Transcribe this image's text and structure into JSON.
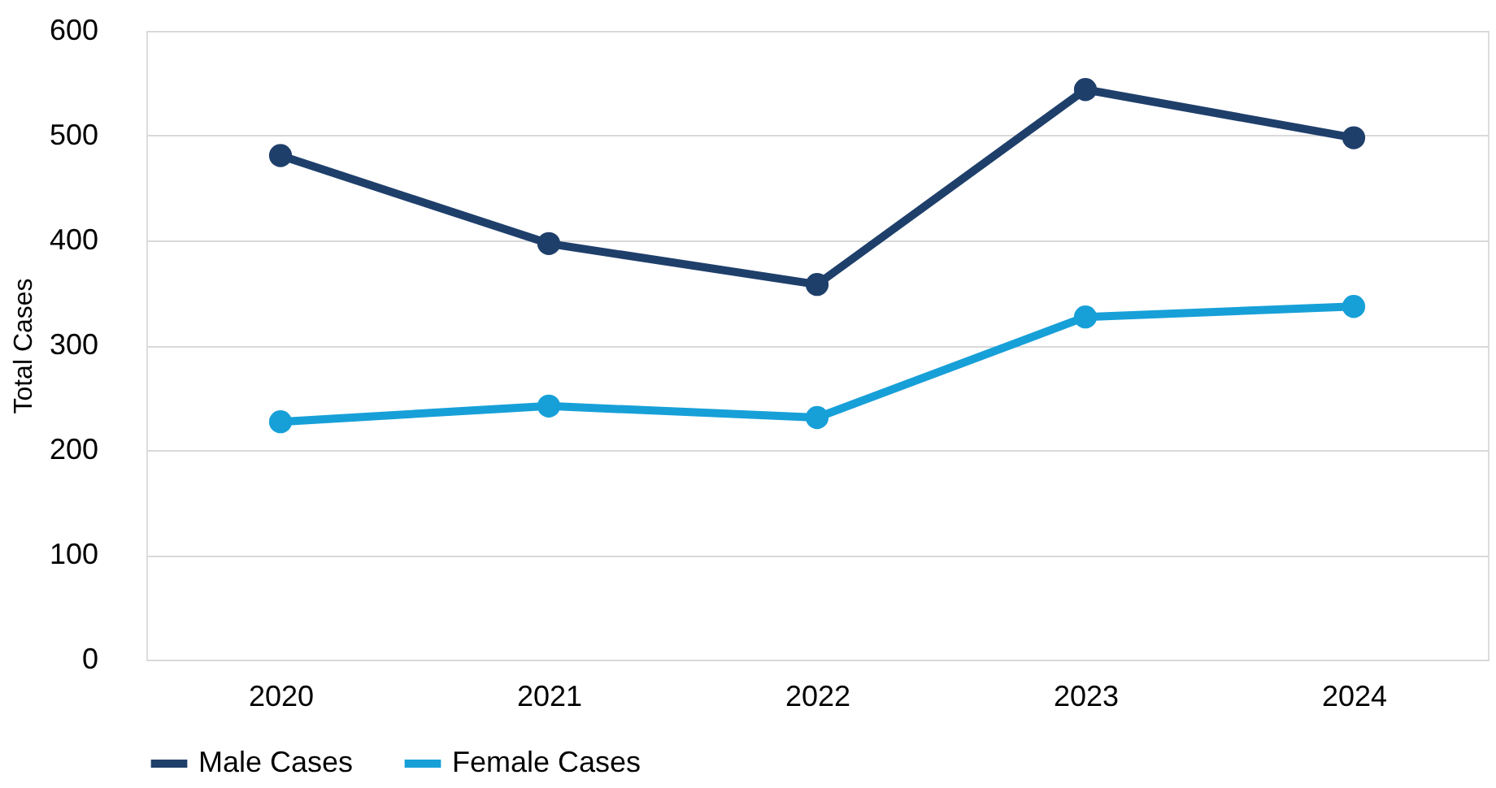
{
  "chart_data": {
    "type": "line",
    "ylabel": "Total Cases",
    "categories": [
      "2020",
      "2021",
      "2022",
      "2023",
      "2024"
    ],
    "series": [
      {
        "name": "Male Cases",
        "color": "#1f3f6b",
        "values": [
          481,
          397,
          358,
          544,
          498
        ]
      },
      {
        "name": "Female Cases",
        "color": "#17a0d8",
        "values": [
          227,
          242,
          231,
          327,
          337
        ]
      }
    ],
    "ylim": [
      0,
      600
    ],
    "yticks": [
      0,
      100,
      200,
      300,
      400,
      500,
      600
    ],
    "grid": "y",
    "legend": "bottom",
    "marker": "circle",
    "line_style": "solid"
  }
}
